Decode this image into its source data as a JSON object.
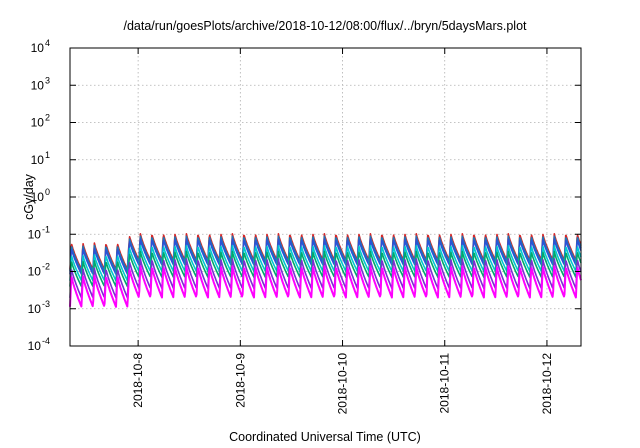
{
  "chart_data": {
    "type": "line",
    "title": "/data/run/goesPlots/archive/2018-10-12/08:00/flux/../bryn/5daysMars.plot",
    "xlabel": "Coordinated Universal Time (UTC)",
    "ylabel": "cGy/day",
    "y_scale": "log",
    "ylim": [
      0.0001,
      10000
    ],
    "y_ticks": [
      {
        "value": 0.0001,
        "base": "10",
        "exp": "-4"
      },
      {
        "value": 0.001,
        "base": "10",
        "exp": "-3"
      },
      {
        "value": 0.01,
        "base": "10",
        "exp": "-2"
      },
      {
        "value": 0.1,
        "base": "10",
        "exp": "-1"
      },
      {
        "value": 1,
        "base": "10",
        "exp": "0"
      },
      {
        "value": 10,
        "base": "10",
        "exp": "1"
      },
      {
        "value": 100,
        "base": "10",
        "exp": "2"
      },
      {
        "value": 1000,
        "base": "10",
        "exp": "3"
      },
      {
        "value": 10000,
        "base": "10",
        "exp": "4"
      }
    ],
    "xlim": [
      "2018-10-07 08:00",
      "2018-10-12 08:00"
    ],
    "x_ticks": [
      {
        "value": "2018-10-08 00:00",
        "label": "2018-10-8"
      },
      {
        "value": "2018-10-09 00:00",
        "label": "2018-10-9"
      },
      {
        "value": "2018-10-10 00:00",
        "label": "2018-10-10"
      },
      {
        "value": "2018-10-11 00:00",
        "label": "2018-10-11"
      },
      {
        "value": "2018-10-12 00:00",
        "label": "2018-10-12"
      }
    ],
    "grid": true,
    "cycle_hours": 2.7,
    "series": [
      {
        "color": "#d62728",
        "peak": 0.105,
        "trough": 0.02
      },
      {
        "color": "#1f77b4",
        "peak": 0.09,
        "trough": 0.018
      },
      {
        "color": "#2a52d6",
        "peak": 0.075,
        "trough": 0.015
      },
      {
        "color": "#00c8d0",
        "peak": 0.05,
        "trough": 0.01
      },
      {
        "color": "#00a86b",
        "peak": 0.035,
        "trough": 0.007
      },
      {
        "color": "#7a2fd0",
        "peak": 0.022,
        "trough": 0.0035
      },
      {
        "color": "#ff00ff",
        "peak": 0.014,
        "trough": 0.002
      }
    ]
  }
}
